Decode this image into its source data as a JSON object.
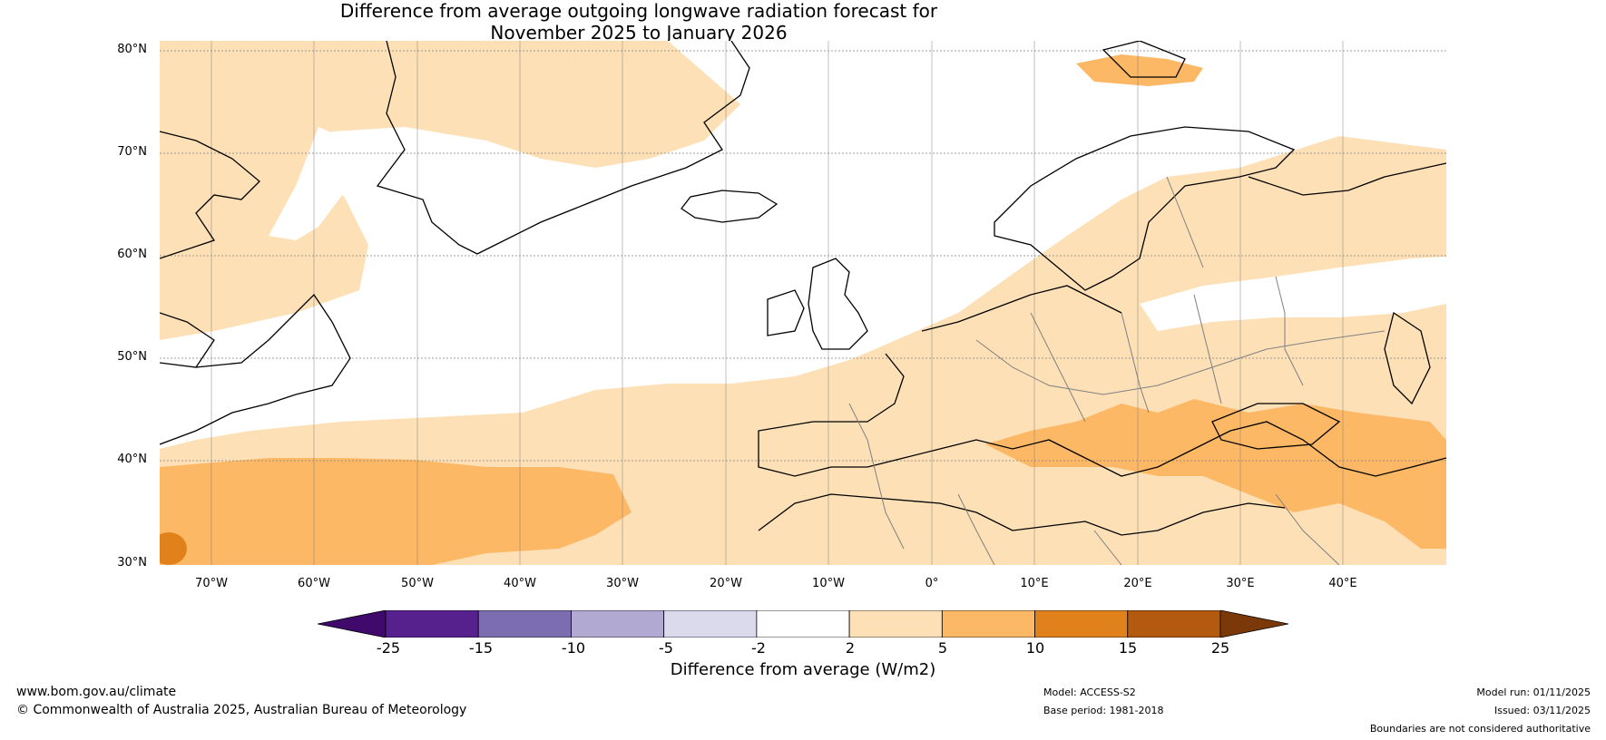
{
  "title": {
    "line1": "Difference from average outgoing longwave radiation forecast for",
    "line2": "November 2025 to January 2026"
  },
  "map": {
    "lat_labels": [
      "80°N",
      "70°N",
      "60°N",
      "50°N",
      "40°N",
      "30°N"
    ],
    "lon_labels": [
      "70°W",
      "60°W",
      "50°W",
      "40°W",
      "30°W",
      "20°W",
      "10°W",
      "0°",
      "10°E",
      "20°E",
      "30°E",
      "40°E"
    ],
    "extent": {
      "lon_min": -75,
      "lon_max": 50,
      "lat_min": 30,
      "lat_max": 81
    }
  },
  "colorbar": {
    "ticks": [
      "-25",
      "-15",
      "-10",
      "-5",
      "-2",
      "2",
      "5",
      "10",
      "15",
      "25"
    ],
    "title": "Difference from average (W/m2)",
    "colors": [
      "#3f0a6b",
      "#56208d",
      "#7b6daf",
      "#b2a9d3",
      "#dadaec",
      "#ffffff",
      "#fde0b6",
      "#fdb866",
      "#e0811c",
      "#b45a0e",
      "#7b3808"
    ]
  },
  "footer": {
    "website": "www.bom.gov.au/climate",
    "copyright": "© Commonwealth of Australia 2025, Australian Bureau of Meteorology",
    "model": "Model: ACCESS-S2",
    "base_period": "Base period: 1981-2018",
    "model_run": "Model run: 01/11/2025",
    "issued": "Issued: 03/11/2025",
    "disclaimer": "Boundaries are not considered authoritative"
  },
  "colors": {
    "light_orange": "#fde0b6",
    "mid_orange": "#fdb866",
    "dark_orange": "#e0811c",
    "coast": "#000000",
    "border": "#808080"
  }
}
